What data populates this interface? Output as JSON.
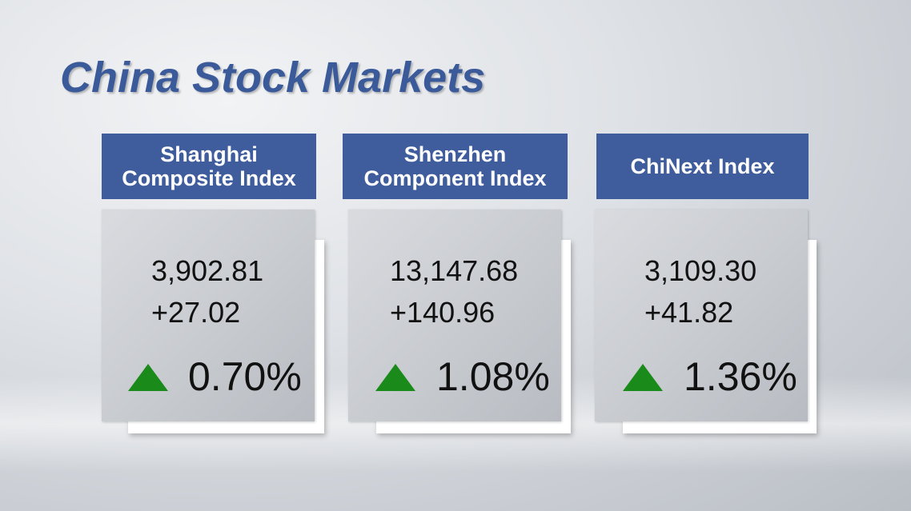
{
  "title": "China Stock Markets",
  "cards": [
    {
      "name": "Shanghai Composite Index",
      "value": "3,902.81",
      "change": "+27.02",
      "percent": "0.70%"
    },
    {
      "name": "Shenzhen Component Index",
      "value": "13,147.68",
      "change": "+140.96",
      "percent": "1.08%"
    },
    {
      "name": "ChiNext Index",
      "value": "3,109.30",
      "change": "+41.82",
      "percent": "1.36%"
    }
  ]
}
